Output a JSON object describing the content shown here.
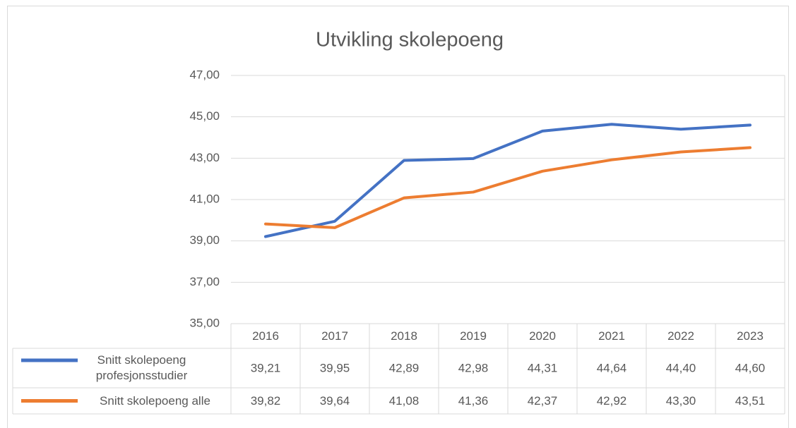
{
  "chart_data": {
    "type": "line",
    "title": "Utvikling skolepoeng",
    "categories": [
      "2016",
      "2017",
      "2018",
      "2019",
      "2020",
      "2021",
      "2022",
      "2023"
    ],
    "series": [
      {
        "name": "Snitt skolepoeng profesjonsstudier",
        "color": "#4472c4",
        "values": [
          39.21,
          39.95,
          42.89,
          42.98,
          44.31,
          44.64,
          44.4,
          44.6
        ],
        "value_labels": [
          "39,21",
          "39,95",
          "42,89",
          "42,98",
          "44,31",
          "44,64",
          "44,40",
          "44,60"
        ]
      },
      {
        "name": "Snitt skolepoeng alle",
        "color": "#ed7d31",
        "values": [
          39.82,
          39.64,
          41.08,
          41.36,
          42.37,
          42.92,
          43.3,
          43.51
        ],
        "value_labels": [
          "39,82",
          "39,64",
          "41,08",
          "41,36",
          "42,37",
          "42,92",
          "43,30",
          "43,51"
        ]
      }
    ],
    "ylim": [
      35,
      47
    ],
    "yticks": [
      {
        "value": 35,
        "label": "35,00"
      },
      {
        "value": 37,
        "label": "37,00"
      },
      {
        "value": 39,
        "label": "39,00"
      },
      {
        "value": 41,
        "label": "41,00"
      },
      {
        "value": 43,
        "label": "43,00"
      },
      {
        "value": 45,
        "label": "45,00"
      },
      {
        "value": 47,
        "label": "47,00"
      }
    ],
    "grid": true
  }
}
